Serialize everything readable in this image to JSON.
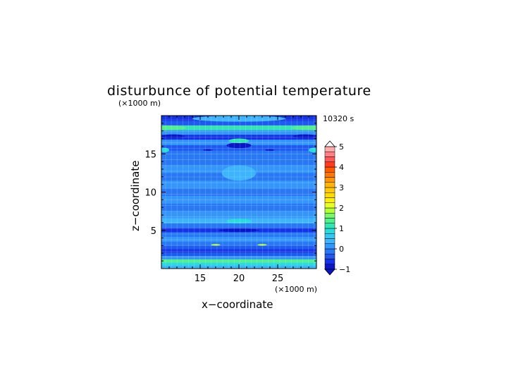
{
  "chart_data": {
    "type": "heatmap",
    "title": "disturbunce of potential temperature",
    "time_label": "10320 s",
    "xlabel": "x−coordinate",
    "ylabel": "z−coordinate",
    "x_unit": "(×1000 m)",
    "y_unit": "(×1000 m)",
    "xlim": [
      10,
      30
    ],
    "ylim": [
      0,
      20
    ],
    "x_ticks": [
      15,
      20,
      25
    ],
    "y_ticks": [
      5,
      10,
      15
    ],
    "colorbar": {
      "min": -1,
      "max": 5,
      "step": 0.25,
      "tick_values": [
        -1,
        0,
        1,
        2,
        3,
        4,
        5
      ],
      "colors": [
        "#0a14c8",
        "#1432e6",
        "#1e5af0",
        "#2878f5",
        "#3296fa",
        "#3cb4ff",
        "#32c8f0",
        "#28dcdc",
        "#32e6b4",
        "#50f08c",
        "#78f864",
        "#b4ff3c",
        "#e6ff28",
        "#fff000",
        "#ffdc00",
        "#ffc800",
        "#ffb400",
        "#ff9600",
        "#ff7800",
        "#ff5a00",
        "#ff3c1e",
        "#ff5a5a",
        "#ff8282",
        "#ffaaaa"
      ]
    },
    "bands": [
      {
        "z": 0.15,
        "value": 0.4
      },
      {
        "z": 0.6,
        "value": 0.9
      },
      {
        "z": 1.0,
        "value": 1.25
      },
      {
        "z": 1.4,
        "value": 0.2
      },
      {
        "z": 1.9,
        "value": -0.4
      },
      {
        "z": 2.3,
        "value": -0.75
      },
      {
        "z": 2.8,
        "value": -0.5
      },
      {
        "z": 3.2,
        "value": -0.1
      },
      {
        "z": 3.8,
        "value": 0.0
      },
      {
        "z": 4.5,
        "value": -0.25
      },
      {
        "z": 5.0,
        "value": -0.55
      },
      {
        "z": 5.6,
        "value": -0.15
      },
      {
        "z": 6.2,
        "value": 0.3
      },
      {
        "z": 7.0,
        "value": 0.05
      },
      {
        "z": 8.0,
        "value": -0.2
      },
      {
        "z": 9.0,
        "value": 0.05
      },
      {
        "z": 10.0,
        "value": -0.15
      },
      {
        "z": 11.0,
        "value": 0.05
      },
      {
        "z": 12.0,
        "value": -0.1
      },
      {
        "z": 13.0,
        "value": 0.1
      },
      {
        "z": 14.0,
        "value": -0.15
      },
      {
        "z": 15.0,
        "value": -0.05
      },
      {
        "z": 15.8,
        "value": -0.35
      },
      {
        "z": 16.5,
        "value": 0.1
      },
      {
        "z": 17.2,
        "value": -0.55
      },
      {
        "z": 17.8,
        "value": 0.2
      },
      {
        "z": 18.4,
        "value": 1.05
      },
      {
        "z": 19.0,
        "value": -0.3
      },
      {
        "z": 19.6,
        "value": -0.7
      }
    ],
    "features": [
      {
        "x": 20.0,
        "z": 12.5,
        "rx": 2.2,
        "rz": 1.0,
        "value": 0.25
      },
      {
        "x": 20.0,
        "z": 16.1,
        "rx": 1.6,
        "rz": 0.35,
        "value": -0.8
      },
      {
        "x": 20.0,
        "z": 16.7,
        "rx": 1.3,
        "rz": 0.3,
        "value": 1.0
      },
      {
        "x": 20.0,
        "z": 6.2,
        "rx": 1.6,
        "rz": 0.3,
        "value": 0.9
      },
      {
        "x": 20.0,
        "z": 5.0,
        "rx": 2.6,
        "rz": 0.22,
        "value": -0.95
      },
      {
        "x": 17.0,
        "z": 3.1,
        "rx": 0.6,
        "rz": 0.12,
        "value": 1.8
      },
      {
        "x": 23.0,
        "z": 3.1,
        "rx": 0.6,
        "rz": 0.12,
        "value": 1.8
      },
      {
        "x": 10.6,
        "z": 18.4,
        "rx": 2.6,
        "rz": 0.3,
        "value": 1.3
      },
      {
        "x": 29.4,
        "z": 18.4,
        "rx": 2.6,
        "rz": 0.3,
        "value": 1.3
      },
      {
        "x": 10.4,
        "z": 15.5,
        "rx": 0.6,
        "rz": 0.3,
        "value": 0.9
      },
      {
        "x": 29.6,
        "z": 15.5,
        "rx": 0.6,
        "rz": 0.3,
        "value": 0.9
      },
      {
        "x": 16.0,
        "z": 15.5,
        "rx": 0.6,
        "rz": 0.1,
        "value": -1.0
      },
      {
        "x": 24.0,
        "z": 15.5,
        "rx": 0.6,
        "rz": 0.1,
        "value": -1.0
      },
      {
        "x": 11.5,
        "z": 17.3,
        "rx": 1.5,
        "rz": 0.25,
        "value": -0.95
      },
      {
        "x": 28.5,
        "z": 17.3,
        "rx": 1.5,
        "rz": 0.25,
        "value": -0.95
      },
      {
        "x": 20.0,
        "z": 19.6,
        "rx": 6.0,
        "rz": 0.4,
        "value": 0.3
      }
    ]
  }
}
